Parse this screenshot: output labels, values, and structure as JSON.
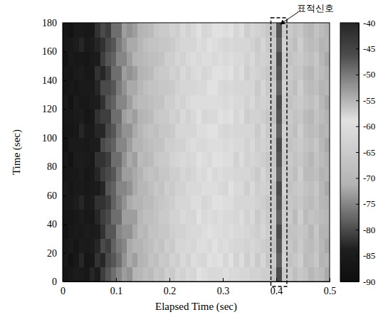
{
  "chart_data": {
    "type": "heatmap",
    "xlabel": "Elapsed Time (sec)",
    "ylabel": "Time (sec)",
    "xlim": [
      0,
      0.5
    ],
    "ylim": [
      0,
      180
    ],
    "xticks": [
      0,
      0.1,
      0.2,
      0.3,
      0.4,
      0.5
    ],
    "yticks": [
      0,
      20,
      40,
      60,
      80,
      100,
      120,
      140,
      160,
      180
    ],
    "colorbar_range": [
      -90,
      -40
    ],
    "colorbar_ticks": [
      -40,
      -45,
      -50,
      -55,
      -60,
      -65,
      -70,
      -75,
      -80,
      -85,
      -90
    ],
    "annotations": [
      {
        "text": "표적신호",
        "x": 0.405,
        "x_range": [
          0.39,
          0.42
        ]
      }
    ],
    "x_bins": [
      0,
      0.01,
      0.02,
      0.03,
      0.04,
      0.05,
      0.06,
      0.07,
      0.08,
      0.09,
      0.1,
      0.11,
      0.12,
      0.13,
      0.14,
      0.15,
      0.16,
      0.17,
      0.18,
      0.19,
      0.2,
      0.21,
      0.22,
      0.23,
      0.24,
      0.25,
      0.26,
      0.27,
      0.28,
      0.29,
      0.3,
      0.31,
      0.32,
      0.33,
      0.34,
      0.35,
      0.36,
      0.37,
      0.38,
      0.39,
      0.4,
      0.41,
      0.42,
      0.43,
      0.44,
      0.45,
      0.46,
      0.47,
      0.48,
      0.49,
      0.5
    ],
    "y_bins": [
      0,
      10,
      20,
      30,
      40,
      50,
      60,
      70,
      80,
      90,
      100,
      110,
      120,
      130,
      140,
      150,
      160,
      170,
      180
    ],
    "cells": [
      [
        -87,
        -86,
        -84,
        -85,
        -86,
        -83,
        -84,
        -81,
        -79,
        -77,
        -75,
        -73,
        -74,
        -71,
        -70,
        -68,
        -69,
        -66,
        -67,
        -64,
        -65,
        -62,
        -63,
        -61,
        -62,
        -59,
        -60,
        -61,
        -58,
        -61,
        -60,
        -61,
        -61,
        -62,
        -62,
        -63,
        -63,
        -64,
        -64,
        -67,
        -46,
        -65,
        -65,
        -68,
        -66,
        -67,
        -70,
        -68,
        -69,
        -72
      ],
      [
        -85,
        -88,
        -86,
        -83,
        -87,
        -86,
        -82,
        -83,
        -80,
        -79,
        -77,
        -74,
        -72,
        -73,
        -71,
        -70,
        -67,
        -68,
        -65,
        -66,
        -63,
        -64,
        -61,
        -63,
        -60,
        -61,
        -62,
        -59,
        -60,
        -59,
        -62,
        -59,
        -63,
        -60,
        -64,
        -61,
        -65,
        -62,
        -66,
        -65,
        -48,
        -63,
        -67,
        -66,
        -64,
        -69,
        -68,
        -66,
        -71,
        -70
      ],
      [
        -86,
        -85,
        -87,
        -84,
        -85,
        -84,
        -83,
        -80,
        -81,
        -78,
        -76,
        -75,
        -72,
        -71,
        -71,
        -69,
        -68,
        -66,
        -67,
        -64,
        -65,
        -62,
        -62,
        -61,
        -62,
        -60,
        -60,
        -61,
        -59,
        -61,
        -60,
        -61,
        -62,
        -62,
        -63,
        -62,
        -63,
        -64,
        -65,
        -67,
        -47,
        -64,
        -66,
        -68,
        -65,
        -68,
        -69,
        -67,
        -70,
        -72
      ],
      [
        -88,
        -86,
        -85,
        -86,
        -84,
        -85,
        -84,
        -82,
        -79,
        -79,
        -75,
        -74,
        -74,
        -72,
        -69,
        -70,
        -67,
        -67,
        -66,
        -66,
        -64,
        -63,
        -63,
        -62,
        -61,
        -61,
        -60,
        -59,
        -60,
        -60,
        -61,
        -60,
        -61,
        -61,
        -62,
        -63,
        -64,
        -62,
        -64,
        -66,
        -46,
        -65,
        -67,
        -67,
        -66,
        -67,
        -70,
        -66,
        -71,
        -71
      ],
      [
        -87,
        -87,
        -86,
        -84,
        -86,
        -86,
        -83,
        -81,
        -80,
        -77,
        -77,
        -73,
        -73,
        -73,
        -70,
        -68,
        -68,
        -67,
        -65,
        -65,
        -63,
        -63,
        -61,
        -62,
        -62,
        -59,
        -61,
        -60,
        -58,
        -60,
        -61,
        -61,
        -62,
        -60,
        -63,
        -61,
        -65,
        -63,
        -65,
        -65,
        -48,
        -64,
        -65,
        -69,
        -64,
        -69,
        -67,
        -68,
        -69,
        -70
      ],
      [
        -86,
        -86,
        -84,
        -83,
        -85,
        -84,
        -82,
        -82,
        -81,
        -78,
        -76,
        -74,
        -72,
        -71,
        -71,
        -69,
        -69,
        -67,
        -66,
        -65,
        -64,
        -62,
        -62,
        -62,
        -60,
        -60,
        -62,
        -61,
        -59,
        -59,
        -60,
        -60,
        -62,
        -62,
        -62,
        -62,
        -63,
        -64,
        -66,
        -66,
        -47,
        -65,
        -66,
        -67,
        -66,
        -68,
        -69,
        -67,
        -70,
        -71
      ],
      [
        -85,
        -87,
        -85,
        -85,
        -86,
        -85,
        -84,
        -83,
        -79,
        -78,
        -75,
        -75,
        -74,
        -72,
        -70,
        -70,
        -68,
        -66,
        -67,
        -64,
        -65,
        -63,
        -63,
        -61,
        -61,
        -61,
        -60,
        -60,
        -60,
        -61,
        -62,
        -59,
        -61,
        -61,
        -64,
        -61,
        -64,
        -63,
        -64,
        -67,
        -46,
        -63,
        -67,
        -66,
        -65,
        -67,
        -68,
        -66,
        -70,
        -72
      ],
      [
        -87,
        -86,
        -86,
        -84,
        -87,
        -85,
        -83,
        -81,
        -80,
        -79,
        -76,
        -73,
        -73,
        -72,
        -71,
        -68,
        -67,
        -68,
        -66,
        -66,
        -64,
        -64,
        -62,
        -63,
        -62,
        -60,
        -61,
        -59,
        -58,
        -60,
        -61,
        -61,
        -62,
        -62,
        -62,
        -63,
        -65,
        -62,
        -65,
        -65,
        -48,
        -64,
        -66,
        -68,
        -64,
        -69,
        -69,
        -68,
        -71,
        -70
      ],
      [
        -86,
        -88,
        -84,
        -84,
        -85,
        -86,
        -82,
        -82,
        -81,
        -77,
        -77,
        -74,
        -72,
        -73,
        -69,
        -70,
        -69,
        -66,
        -65,
        -65,
        -63,
        -62,
        -61,
        -62,
        -61,
        -59,
        -60,
        -61,
        -59,
        -59,
        -60,
        -60,
        -63,
        -60,
        -63,
        -62,
        -63,
        -64,
        -66,
        -66,
        -47,
        -65,
        -65,
        -67,
        -66,
        -68,
        -70,
        -67,
        -69,
        -71
      ],
      [
        -88,
        -85,
        -85,
        -85,
        -86,
        -84,
        -84,
        -80,
        -79,
        -78,
        -75,
        -75,
        -73,
        -71,
        -71,
        -69,
        -68,
        -67,
        -67,
        -64,
        -64,
        -63,
        -63,
        -61,
        -60,
        -61,
        -61,
        -60,
        -60,
        -60,
        -61,
        -60,
        -61,
        -61,
        -63,
        -61,
        -64,
        -63,
        -64,
        -66,
        -46,
        -64,
        -67,
        -66,
        -65,
        -67,
        -68,
        -66,
        -70,
        -72
      ],
      [
        -87,
        -87,
        -86,
        -83,
        -85,
        -85,
        -83,
        -83,
        -80,
        -79,
        -76,
        -74,
        -74,
        -72,
        -70,
        -68,
        -67,
        -68,
        -66,
        -66,
        -65,
        -62,
        -62,
        -62,
        -62,
        -60,
        -60,
        -59,
        -59,
        -61,
        -62,
        -61,
        -62,
        -62,
        -62,
        -62,
        -65,
        -62,
        -65,
        -65,
        -48,
        -63,
        -66,
        -68,
        -64,
        -68,
        -69,
        -68,
        -71,
        -70
      ],
      [
        -86,
        -86,
        -85,
        -84,
        -87,
        -86,
        -82,
        -81,
        -81,
        -77,
        -77,
        -73,
        -72,
        -73,
        -71,
        -70,
        -69,
        -66,
        -65,
        -65,
        -63,
        -64,
        -61,
        -63,
        -61,
        -59,
        -62,
        -61,
        -58,
        -59,
        -60,
        -59,
        -62,
        -60,
        -64,
        -63,
        -63,
        -64,
        -66,
        -67,
        -47,
        -65,
        -65,
        -67,
        -66,
        -69,
        -70,
        -67,
        -69,
        -71
      ],
      [
        -85,
        -88,
        -84,
        -86,
        -86,
        -84,
        -84,
        -82,
        -79,
        -78,
        -75,
        -75,
        -73,
        -71,
        -69,
        -69,
        -68,
        -67,
        -67,
        -64,
        -64,
        -62,
        -63,
        -61,
        -60,
        -60,
        -60,
        -60,
        -60,
        -60,
        -61,
        -60,
        -61,
        -61,
        -63,
        -61,
        -64,
        -63,
        -64,
        -66,
        -46,
        -64,
        -67,
        -66,
        -65,
        -67,
        -68,
        -66,
        -70,
        -72
      ],
      [
        -87,
        -86,
        -87,
        -85,
        -85,
        -85,
        -83,
        -80,
        -80,
        -79,
        -76,
        -74,
        -72,
        -72,
        -70,
        -68,
        -67,
        -67,
        -66,
        -66,
        -65,
        -63,
        -62,
        -62,
        -62,
        -61,
        -61,
        -59,
        -59,
        -61,
        -62,
        -61,
        -62,
        -62,
        -62,
        -62,
        -65,
        -62,
        -65,
        -65,
        -48,
        -63,
        -66,
        -68,
        -64,
        -68,
        -69,
        -68,
        -71,
        -70
      ],
      [
        -86,
        -87,
        -85,
        -84,
        -86,
        -86,
        -82,
        -83,
        -81,
        -77,
        -77,
        -73,
        -74,
        -73,
        -71,
        -70,
        -69,
        -66,
        -65,
        -65,
        -63,
        -64,
        -61,
        -63,
        -61,
        -60,
        -62,
        -61,
        -59,
        -59,
        -60,
        -59,
        -62,
        -60,
        -64,
        -62,
        -63,
        -64,
        -66,
        -67,
        -47,
        -65,
        -65,
        -67,
        -66,
        -69,
        -70,
        -67,
        -69,
        -71
      ],
      [
        -88,
        -85,
        -86,
        -86,
        -87,
        -85,
        -84,
        -81,
        -79,
        -78,
        -75,
        -75,
        -73,
        -71,
        -70,
        -69,
        -68,
        -68,
        -67,
        -64,
        -64,
        -62,
        -63,
        -61,
        -60,
        -61,
        -60,
        -60,
        -58,
        -60,
        -61,
        -60,
        -61,
        -61,
        -63,
        -61,
        -64,
        -63,
        -64,
        -66,
        -46,
        -64,
        -67,
        -66,
        -65,
        -67,
        -68,
        -66,
        -70,
        -72
      ],
      [
        -86,
        -86,
        -84,
        -83,
        -85,
        -84,
        -83,
        -82,
        -80,
        -79,
        -76,
        -74,
        -72,
        -72,
        -70,
        -68,
        -67,
        -67,
        -66,
        -66,
        -65,
        -63,
        -62,
        -62,
        -62,
        -60,
        -61,
        -59,
        -60,
        -61,
        -62,
        -61,
        -62,
        -62,
        -62,
        -63,
        -65,
        -62,
        -65,
        -65,
        -48,
        -63,
        -66,
        -68,
        -64,
        -68,
        -69,
        -68,
        -71,
        -70
      ],
      [
        -87,
        -88,
        -85,
        -85,
        -86,
        -86,
        -82,
        -80,
        -81,
        -77,
        -77,
        -73,
        -74,
        -73,
        -71,
        -70,
        -69,
        -66,
        -65,
        -65,
        -63,
        -64,
        -61,
        -63,
        -61,
        -59,
        -62,
        -61,
        -59,
        -59,
        -60,
        -59,
        -62,
        -60,
        -64,
        -62,
        -63,
        -64,
        -66,
        -67,
        -47,
        -65,
        -65,
        -67,
        -66,
        -69,
        -70,
        -67,
        -69,
        -71
      ]
    ]
  }
}
